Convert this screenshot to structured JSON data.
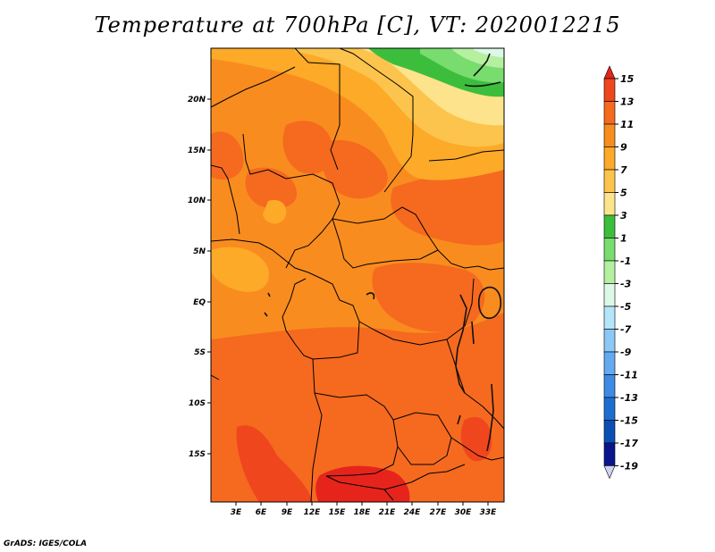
{
  "title": "Temperature at 700hPa [C], VT: 2020012215",
  "credit": "GrADS: IGES/COLA",
  "map": {
    "lat_labels": [
      "20N",
      "15N",
      "10N",
      "5N",
      "EQ",
      "5S",
      "10S",
      "15S"
    ],
    "lon_labels": [
      "3E",
      "6E",
      "9E",
      "12E",
      "15E",
      "18E",
      "21E",
      "24E",
      "27E",
      "30E",
      "33E"
    ]
  },
  "colorbar": {
    "labels": [
      "15",
      "13",
      "11",
      "9",
      "7",
      "5",
      "3",
      "1",
      "-1",
      "-3",
      "-5",
      "-7",
      "-9",
      "-11",
      "-13",
      "-15",
      "-17",
      "-19"
    ],
    "colors": [
      "#e6241c",
      "#f0461e",
      "#f56a1f",
      "#f98c1f",
      "#fcaa28",
      "#fcc44c",
      "#fde38c",
      "#3cbe3c",
      "#78dc6e",
      "#b4f0a0",
      "#dcf8e6",
      "#b4e6fa",
      "#8cc8f5",
      "#64aaf0",
      "#3c8ce6",
      "#1e6ed2",
      "#0a50b4",
      "#0a148c",
      "#d2d2f0"
    ]
  }
}
